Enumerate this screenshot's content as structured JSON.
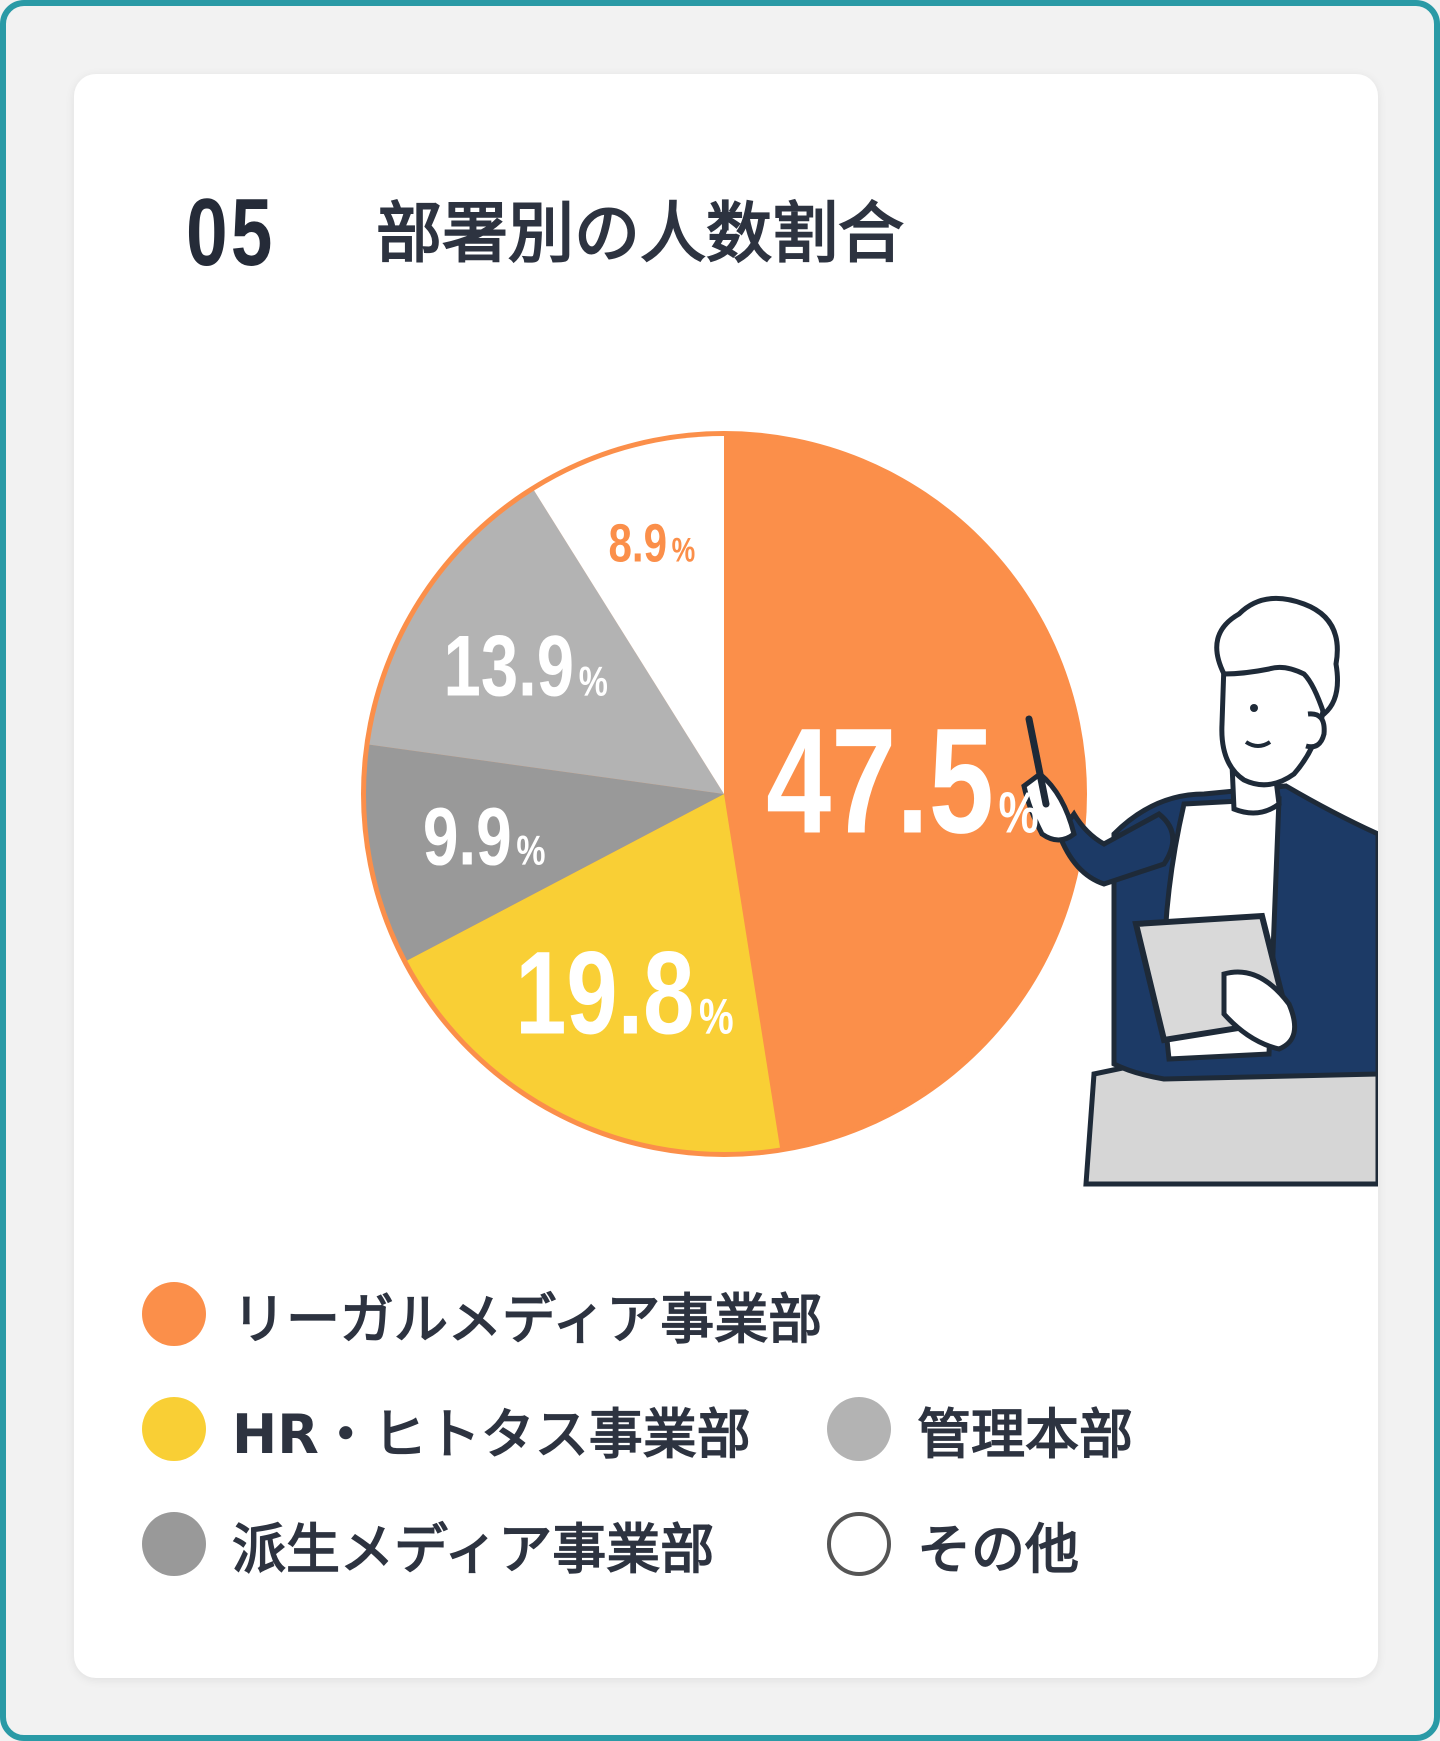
{
  "heading": {
    "number": "05",
    "title": "部署別の人数割合"
  },
  "colors": {
    "frame": "#2a9aa6",
    "orange": "#fb8f4a",
    "yellow": "#f9cf35",
    "light_gray": "#b3b3b3",
    "dark_gray": "#999999",
    "white": "#ffffff",
    "text": "#2d3340"
  },
  "chart_data": {
    "type": "pie",
    "title": "部署別の人数割合",
    "unit": "%",
    "slices": [
      {
        "name": "リーガルメディア事業部",
        "value": 47.5,
        "label": "47.5",
        "color": "#fb8f4a",
        "label_color": "#ffffff"
      },
      {
        "name": "HR・ヒトタス事業部",
        "value": 19.8,
        "label": "19.8",
        "color": "#f9cf35",
        "label_color": "#ffffff"
      },
      {
        "name": "派生メディア事業部",
        "value": 9.9,
        "label": "9.9",
        "color": "#999999",
        "label_color": "#ffffff"
      },
      {
        "name": "管理本部",
        "value": 13.9,
        "label": "13.9",
        "color": "#b3b3b3",
        "label_color": "#ffffff"
      },
      {
        "name": "その他",
        "value": 8.9,
        "label": "8.9",
        "color": "#ffffff",
        "label_color": "#fb8f4a"
      }
    ],
    "legend_placement": "bottom"
  },
  "legend": {
    "rows": [
      [
        {
          "label": "リーガルメディア事業部",
          "color": "#fb8f4a"
        }
      ],
      [
        {
          "label": "HR・ヒトタス事業部",
          "color": "#f9cf35"
        },
        {
          "label": "管理本部",
          "color": "#b3b3b3"
        }
      ],
      [
        {
          "label": "派生メディア事業部",
          "color": "#999999"
        },
        {
          "label": "その他",
          "color": "#ffffff"
        }
      ]
    ]
  },
  "illustration": {
    "icon": "person-presenting-with-tablet-illustration"
  }
}
